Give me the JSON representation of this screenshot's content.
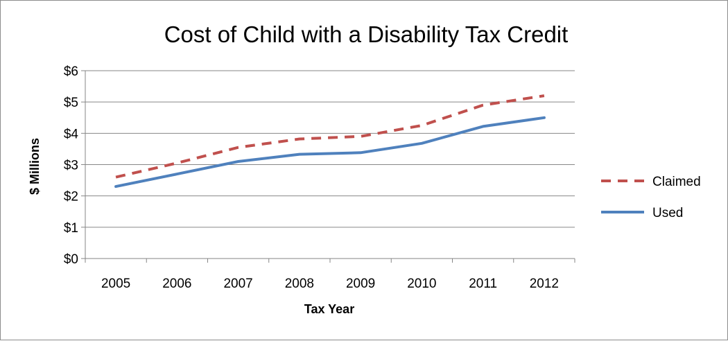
{
  "chart_data": {
    "type": "line",
    "title": "Cost of Child with a Disability Tax Credit",
    "xlabel": "Tax Year",
    "ylabel": "$ Millions",
    "categories": [
      "2005",
      "2006",
      "2007",
      "2008",
      "2009",
      "2010",
      "2011",
      "2012"
    ],
    "ylim": [
      0,
      6
    ],
    "yticks": [
      {
        "value": 0,
        "label": "$0"
      },
      {
        "value": 1,
        "label": "$1"
      },
      {
        "value": 2,
        "label": "$2"
      },
      {
        "value": 3,
        "label": "$3"
      },
      {
        "value": 4,
        "label": "$4"
      },
      {
        "value": 5,
        "label": "$5"
      },
      {
        "value": 6,
        "label": "$6"
      }
    ],
    "grid": true,
    "legend_position": "right",
    "series": [
      {
        "name": "Claimed",
        "color": "#c0504d",
        "dash": "dashed",
        "values": [
          2.6,
          3.05,
          3.55,
          3.82,
          3.9,
          4.25,
          4.9,
          5.2
        ]
      },
      {
        "name": "Used",
        "color": "#4f81bd",
        "dash": "solid",
        "values": [
          2.3,
          2.7,
          3.1,
          3.33,
          3.38,
          3.68,
          4.22,
          4.5
        ]
      }
    ]
  }
}
